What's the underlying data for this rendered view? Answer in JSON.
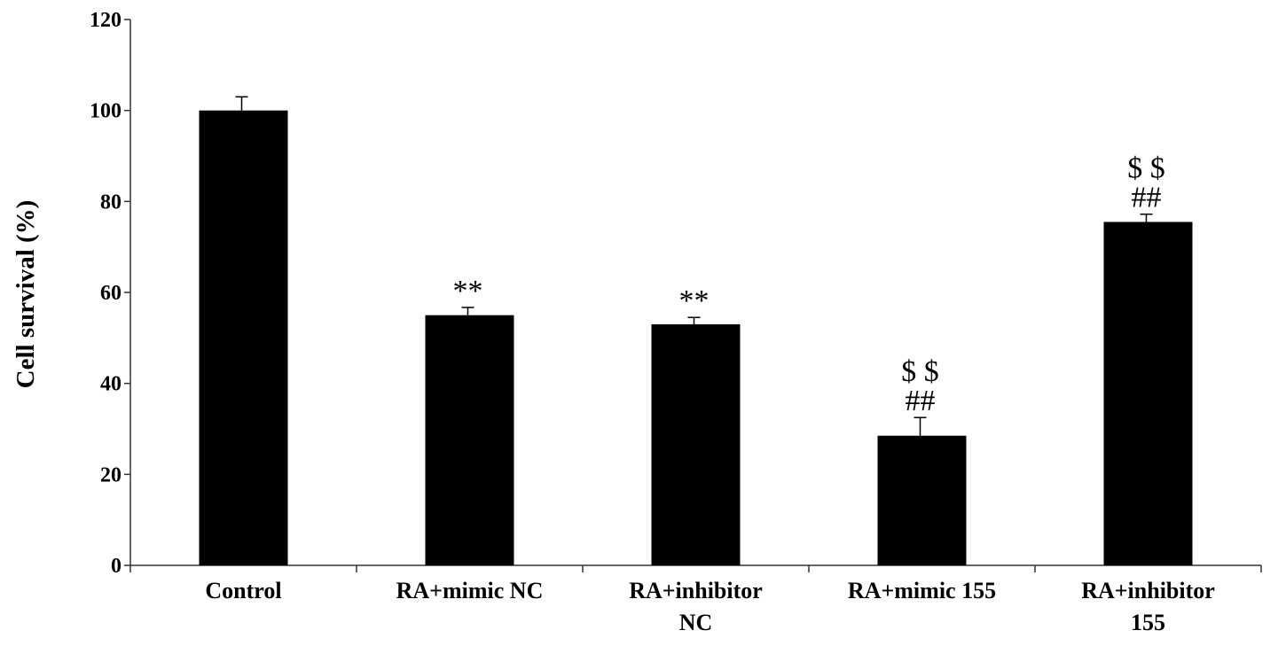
{
  "chart_data": {
    "type": "bar",
    "ylabel": "Cell survival  (%)",
    "xlabel": "",
    "ylim": [
      0,
      120
    ],
    "yticks": [
      0,
      20,
      40,
      60,
      80,
      100,
      120
    ],
    "categories": [
      [
        "Control"
      ],
      [
        "RA+mimic NC"
      ],
      [
        "RA+inhibitor",
        "NC"
      ],
      [
        "RA+mimic 155"
      ],
      [
        "RA+inhibitor",
        "155"
      ]
    ],
    "values": [
      100,
      55,
      53,
      28.5,
      75.5
    ],
    "errors": [
      3,
      1.7,
      1.5,
      4,
      1.7
    ],
    "annotations": [
      [],
      [
        "**"
      ],
      [
        "**"
      ],
      [
        "##",
        "$ $"
      ],
      [
        "##",
        "$ $"
      ]
    ],
    "bar_color": "#000000",
    "grid": false,
    "legend": "none"
  }
}
